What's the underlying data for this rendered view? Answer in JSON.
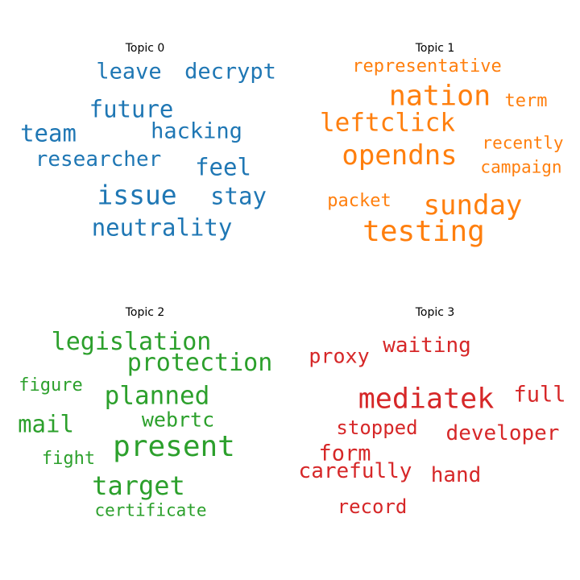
{
  "chart_data": [
    {
      "type": "wordcloud",
      "title": "Topic 0",
      "color": "#1f77b4",
      "words": [
        {
          "text": "leave",
          "weight": 0.62
        },
        {
          "text": "decrypt",
          "weight": 0.62
        },
        {
          "text": "future",
          "weight": 0.66
        },
        {
          "text": "team",
          "weight": 0.66
        },
        {
          "text": "hacking",
          "weight": 0.62
        },
        {
          "text": "researcher",
          "weight": 0.6
        },
        {
          "text": "feel",
          "weight": 0.66
        },
        {
          "text": "issue",
          "weight": 0.74
        },
        {
          "text": "stay",
          "weight": 0.66
        },
        {
          "text": "neutrality",
          "weight": 0.66
        }
      ]
    },
    {
      "type": "wordcloud",
      "title": "Topic 1",
      "color": "#ff7f0e",
      "words": [
        {
          "text": "representative",
          "weight": 0.5
        },
        {
          "text": "nation",
          "weight": 0.8
        },
        {
          "text": "term",
          "weight": 0.5
        },
        {
          "text": "leftclick",
          "weight": 0.7
        },
        {
          "text": "opendns",
          "weight": 0.78
        },
        {
          "text": "recently",
          "weight": 0.48
        },
        {
          "text": "campaign",
          "weight": 0.48
        },
        {
          "text": "packet",
          "weight": 0.5
        },
        {
          "text": "sunday",
          "weight": 0.78
        },
        {
          "text": "testing",
          "weight": 0.82
        }
      ]
    },
    {
      "type": "wordcloud",
      "title": "Topic 2",
      "color": "#2ca02c",
      "words": [
        {
          "text": "legislation",
          "weight": 0.68
        },
        {
          "text": "protection",
          "weight": 0.68
        },
        {
          "text": "figure",
          "weight": 0.5
        },
        {
          "text": "planned",
          "weight": 0.7
        },
        {
          "text": "mail",
          "weight": 0.66
        },
        {
          "text": "webrtc",
          "weight": 0.56
        },
        {
          "text": "present",
          "weight": 0.82
        },
        {
          "text": "fight",
          "weight": 0.5
        },
        {
          "text": "target",
          "weight": 0.72
        },
        {
          "text": "certificate",
          "weight": 0.48
        }
      ]
    },
    {
      "type": "wordcloud",
      "title": "Topic 3",
      "color": "#d62728",
      "words": [
        {
          "text": "proxy",
          "weight": 0.56
        },
        {
          "text": "waiting",
          "weight": 0.6
        },
        {
          "text": "mediatek",
          "weight": 0.8
        },
        {
          "text": "full",
          "weight": 0.62
        },
        {
          "text": "stopped",
          "weight": 0.54
        },
        {
          "text": "developer",
          "weight": 0.6
        },
        {
          "text": "form",
          "weight": 0.62
        },
        {
          "text": "carefully",
          "weight": 0.58
        },
        {
          "text": "hand",
          "weight": 0.6
        },
        {
          "text": "record",
          "weight": 0.54
        }
      ]
    }
  ]
}
